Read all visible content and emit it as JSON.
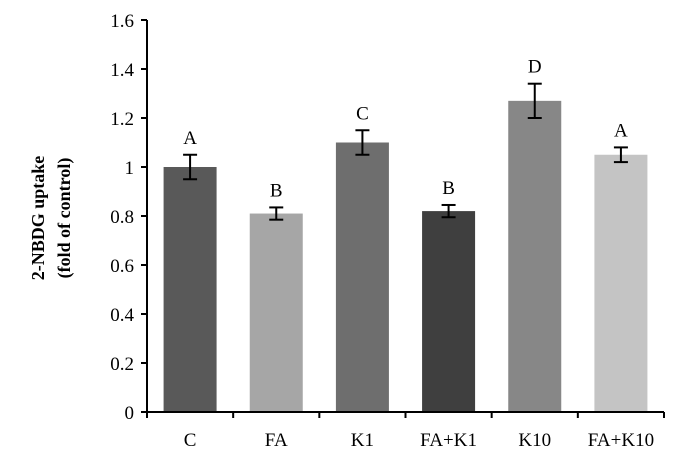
{
  "chart_data": {
    "type": "bar",
    "ylabel_line1": "2-NBDG uptake",
    "ylabel_line2": "(fold of control)",
    "ylim": [
      0,
      1.6
    ],
    "yticks": [
      "0",
      "0.2",
      "0.4",
      "0.6",
      "0.8",
      "1",
      "1.2",
      "1.4",
      "1.6"
    ],
    "grid": false,
    "categories": [
      "C",
      "FA",
      "K1",
      "FA+K1",
      "K10",
      "FA+K10"
    ],
    "values": [
      1.0,
      0.81,
      1.1,
      0.82,
      1.27,
      1.05
    ],
    "errors": [
      0.05,
      0.025,
      0.05,
      0.025,
      0.07,
      0.03
    ],
    "significance": [
      "A",
      "B",
      "C",
      "B",
      "D",
      "A"
    ],
    "colors": [
      "#595959",
      "#a6a6a6",
      "#6e6e6e",
      "#3f3f3f",
      "#878787",
      "#c4c4c4"
    ]
  }
}
